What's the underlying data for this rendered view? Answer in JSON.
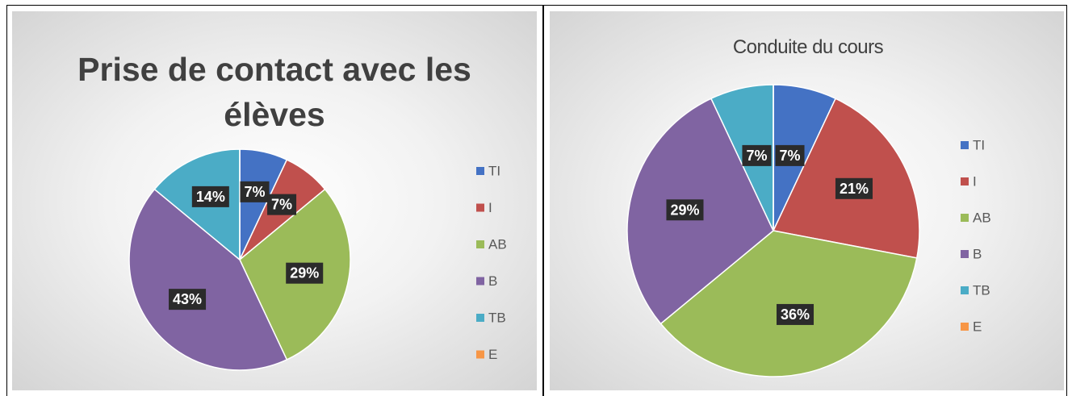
{
  "chart_data": [
    {
      "type": "pie",
      "title": "Prise de contact avec les élèves",
      "categories": [
        "TI",
        "I",
        "AB",
        "B",
        "TB",
        "E"
      ],
      "values": [
        7,
        7,
        29,
        43,
        14,
        0
      ],
      "value_labels": [
        "7%",
        "7%",
        "29%",
        "43%",
        "14%",
        null
      ],
      "colors": [
        "#4472c4",
        "#c0504d",
        "#9bbb59",
        "#8064a2",
        "#4bacc6",
        "#f79646"
      ],
      "legend": "right"
    },
    {
      "type": "pie",
      "title": "Conduite du cours",
      "categories": [
        "TI",
        "I",
        "AB",
        "B",
        "TB",
        "E"
      ],
      "values": [
        7,
        21,
        36,
        29,
        7,
        0
      ],
      "value_labels": [
        "7%",
        "21%",
        "36%",
        "29%",
        "7%",
        null
      ],
      "colors": [
        "#4472c4",
        "#c0504d",
        "#9bbb59",
        "#8064a2",
        "#4bacc6",
        "#f79646"
      ],
      "legend": "right"
    }
  ]
}
